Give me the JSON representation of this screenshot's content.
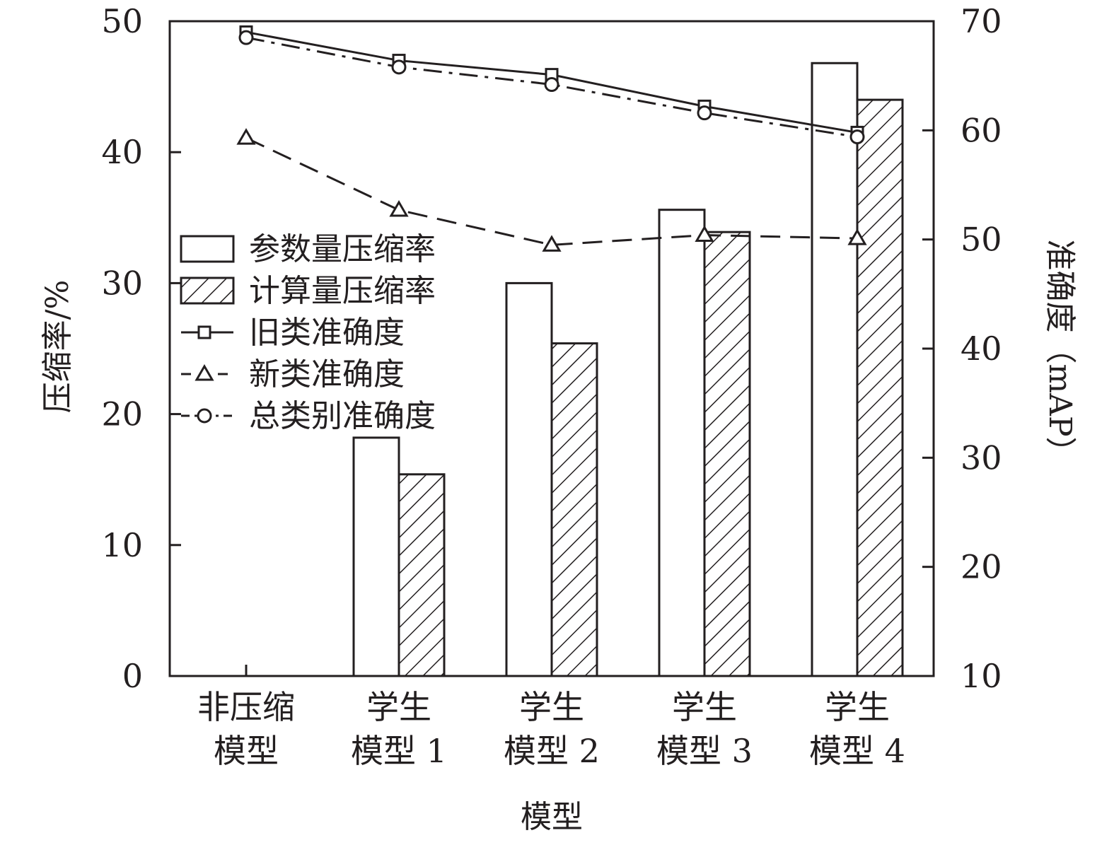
{
  "chart_data": {
    "type": "bar",
    "xlabel": "模型",
    "ylabel_left": "压缩率/%",
    "ylabel_right": "准确度（mAP）",
    "ylim_left": [
      0,
      50
    ],
    "ylim_right": [
      10,
      70
    ],
    "yticks_left": [
      "0",
      "10",
      "20",
      "30",
      "40",
      "50"
    ],
    "yticks_right": [
      "10",
      "20",
      "30",
      "40",
      "50",
      "60",
      "70"
    ],
    "categories": [
      [
        "非压缩",
        "模型"
      ],
      [
        "学生",
        "模型 1"
      ],
      [
        "学生",
        "模型 2"
      ],
      [
        "学生",
        "模型 3"
      ],
      [
        "学生",
        "模型 4"
      ]
    ],
    "bar_series": [
      {
        "name": "参数量压缩率",
        "style": "open",
        "values": [
          0,
          18.2,
          30.0,
          35.6,
          46.8
        ]
      },
      {
        "name": "计算量压缩率",
        "style": "hatched",
        "values": [
          0,
          15.4,
          25.4,
          33.9,
          44.0
        ]
      }
    ],
    "line_series": [
      {
        "name": "旧类准确度",
        "marker": "square",
        "dash": "solid",
        "values": [
          69.0,
          66.4,
          65.1,
          62.2,
          59.8
        ]
      },
      {
        "name": "新类准确度",
        "marker": "triangle",
        "dash": "dashed",
        "values": [
          59.3,
          52.7,
          49.5,
          50.4,
          50.1
        ]
      },
      {
        "name": "总类别准确度",
        "marker": "circle",
        "dash": "dashdot",
        "values": [
          68.5,
          65.8,
          64.2,
          61.6,
          59.4
        ]
      }
    ],
    "legend_position": "left, middle",
    "grid": false,
    "colors": {
      "ink": "#231f20",
      "background": "#ffffff"
    }
  }
}
